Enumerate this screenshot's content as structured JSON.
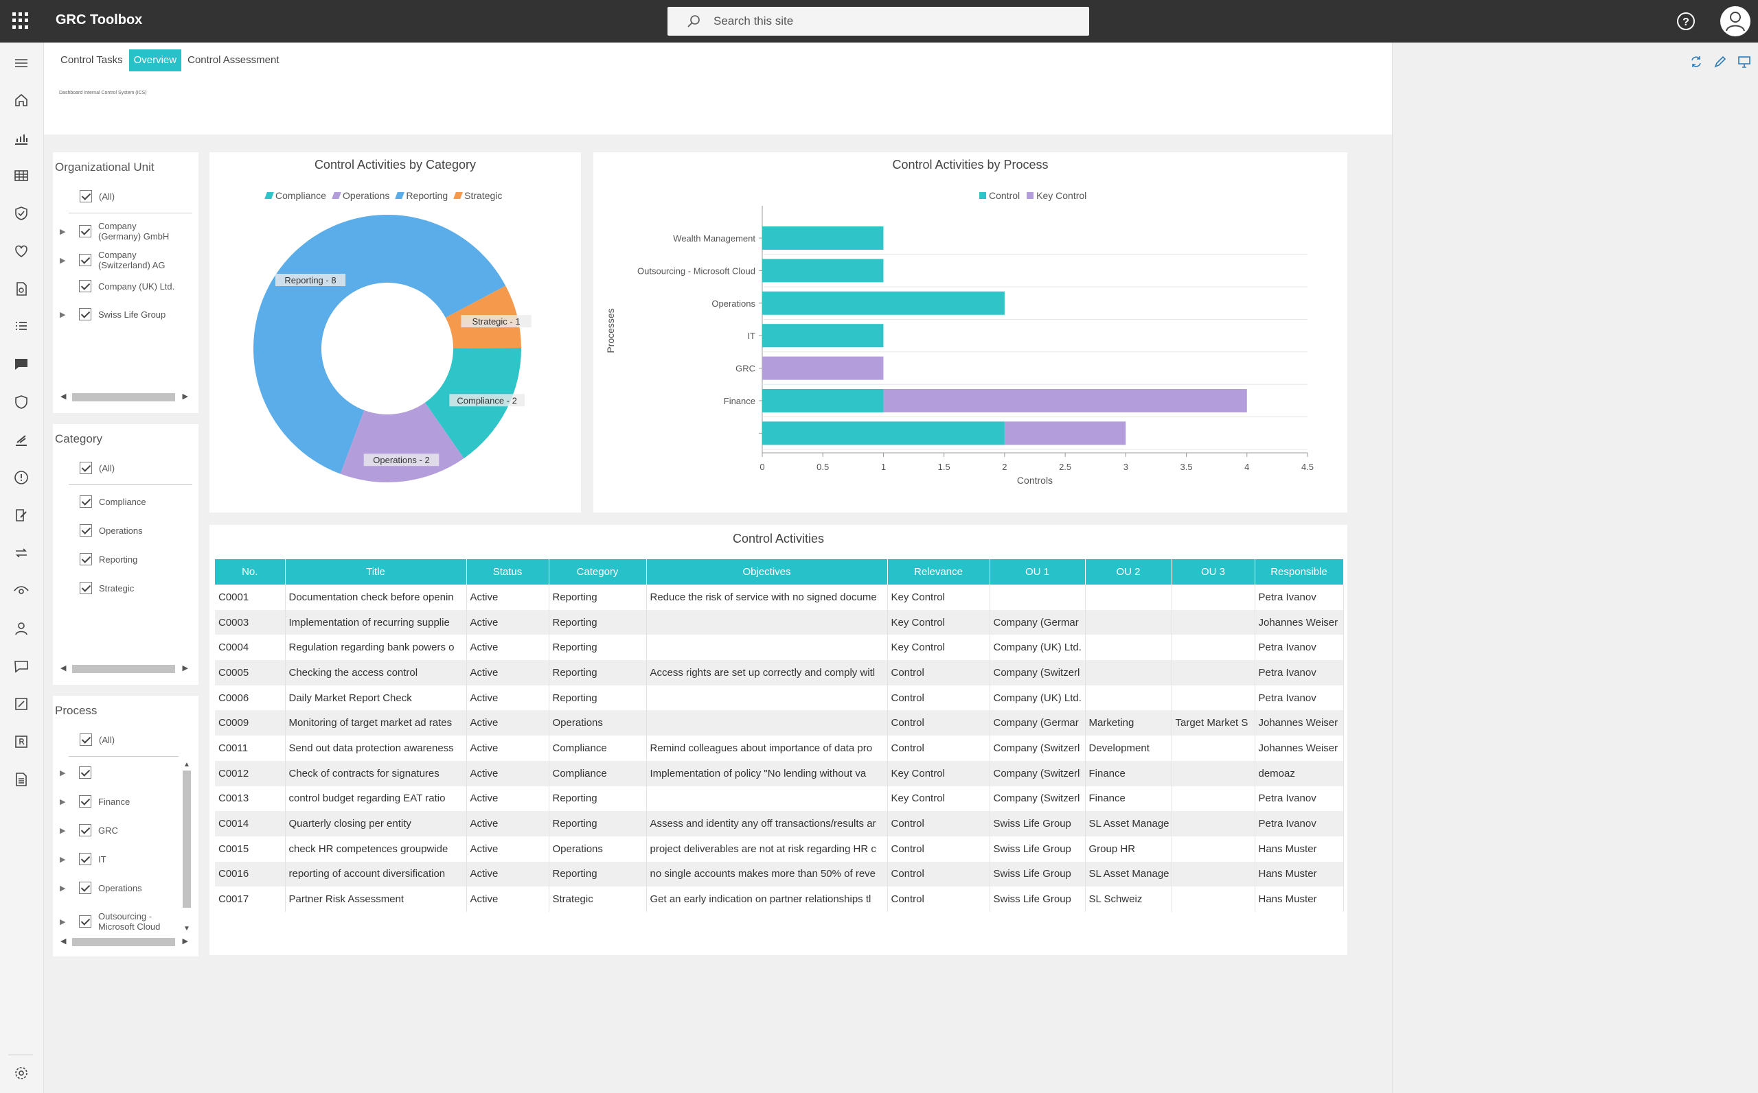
{
  "app": {
    "title": "GRC Toolbox",
    "search_placeholder": "Search this site"
  },
  "tabs": [
    {
      "label": "Control Tasks",
      "active": false
    },
    {
      "label": "Overview",
      "active": true
    },
    {
      "label": "Control Assessment",
      "active": false
    }
  ],
  "page_tiny_title": "Dashboard Internal Control System (ICS)",
  "filters": {
    "org_unit": {
      "title": "Organizational Unit",
      "all": "(All)",
      "items": [
        "Company (Germany) GmbH",
        "Company (Switzerland) AG",
        "Company (UK) Ltd.",
        "Swiss Life Group"
      ]
    },
    "category": {
      "title": "Category",
      "all": "(All)",
      "items": [
        "Compliance",
        "Operations",
        "Reporting",
        "Strategic"
      ]
    },
    "process": {
      "title": "Process",
      "all": "(All)",
      "items": [
        "",
        "Finance",
        "GRC",
        "IT",
        "Operations",
        "Outsourcing - Microsoft Cloud"
      ]
    }
  },
  "colors": {
    "accent": "#26c1c9",
    "compliance": "#2fc4c8",
    "operations": "#b39ddb",
    "reporting": "#5aade8",
    "strategic": "#f59a4c",
    "key_control": "#b39ddb",
    "control": "#2fc4c8"
  },
  "chart_data": [
    {
      "type": "pie",
      "title": "Control Activities by Category",
      "legend": [
        "Compliance",
        "Operations",
        "Reporting",
        "Strategic"
      ],
      "labels": [
        "Reporting",
        "Strategic",
        "Compliance",
        "Operations"
      ],
      "values": [
        8,
        1,
        2,
        2
      ],
      "data_labels": [
        "Reporting - 8",
        "Strategic - 1",
        "Compliance - 2",
        "Operations - 2"
      ]
    },
    {
      "type": "bar",
      "orientation": "horizontal",
      "stacked": true,
      "title": "Control Activities by Process",
      "categories": [
        "Wealth Management",
        "Outsourcing - Microsoft Cloud",
        "Operations",
        "IT",
        "GRC",
        "Finance",
        ""
      ],
      "series": [
        {
          "name": "Control",
          "values": [
            1,
            1,
            2,
            1,
            0,
            1,
            2
          ]
        },
        {
          "name": "Key Control",
          "values": [
            0,
            0,
            0,
            0,
            1,
            3,
            1
          ]
        }
      ],
      "xlabel": "Controls",
      "ylabel": "Processes",
      "xlim": [
        0,
        4.5
      ],
      "xticks": [
        "0",
        "0.5",
        "1",
        "1.5",
        "2",
        "2.5",
        "3",
        "3.5",
        "4",
        "4.5"
      ]
    }
  ],
  "table": {
    "title": "Control Activities",
    "columns": [
      "No.",
      "Title",
      "Status",
      "Category",
      "Objectives",
      "Relevance",
      "OU 1",
      "OU 2",
      "OU 3",
      "Responsible"
    ],
    "rows": [
      [
        "C0001",
        "Documentation check before openin",
        "Active",
        "Reporting",
        "Reduce the risk of service with no signed docume",
        "Key Control",
        "",
        "",
        "",
        "Petra Ivanov"
      ],
      [
        "C0003",
        "Implementation of recurring supplie",
        "Active",
        "Reporting",
        "",
        "Key Control",
        "Company (Germar",
        "",
        "",
        "Johannes Weiser"
      ],
      [
        "C0004",
        "Regulation regarding bank powers o",
        "Active",
        "Reporting",
        "",
        "Key Control",
        "Company (UK) Ltd.",
        "",
        "",
        "Petra Ivanov"
      ],
      [
        "C0005",
        "Checking the access control",
        "Active",
        "Reporting",
        "Access rights are set up correctly and comply witl",
        "Control",
        "Company (Switzerl",
        "",
        "",
        "Petra Ivanov"
      ],
      [
        "C0006",
        "Daily Market Report Check",
        "Active",
        "Reporting",
        "",
        "Control",
        "Company (UK) Ltd.",
        "",
        "",
        "Petra Ivanov"
      ],
      [
        "C0009",
        "Monitoring of target market ad rates",
        "Active",
        "Operations",
        "",
        "Control",
        "Company (Germar",
        "Marketing",
        "Target Market S",
        "Johannes Weiser"
      ],
      [
        "C0011",
        "Send out data protection awareness",
        "Active",
        "Compliance",
        "Remind colleagues about importance of data pro",
        "Control",
        "Company (Switzerl",
        "Development",
        "",
        "Johannes Weiser"
      ],
      [
        "C0012",
        "Check of contracts for signatures",
        "Active",
        "Compliance",
        "Implementation of policy \"No lending without va",
        "Key Control",
        "Company (Switzerl",
        "Finance",
        "",
        "demoaz"
      ],
      [
        "C0013",
        "control budget regarding EAT ratio",
        "Active",
        "Reporting",
        "",
        "Key Control",
        "Company (Switzerl",
        "Finance",
        "",
        "Petra Ivanov"
      ],
      [
        "C0014",
        "Quarterly closing per entity",
        "Active",
        "Reporting",
        "Assess and identity any off transactions/results ar",
        "Control",
        "Swiss Life Group",
        "SL Asset Manage",
        "",
        "Petra Ivanov"
      ],
      [
        "C0015",
        "check HR competences groupwide",
        "Active",
        "Operations",
        "project deliverables are not at risk regarding HR c",
        "Control",
        "Swiss Life Group",
        "Group HR",
        "",
        "Hans Muster"
      ],
      [
        "C0016",
        "reporting of account diversification",
        "Active",
        "Reporting",
        "no single accounts makes more than 50% of reve",
        "Control",
        "Swiss Life Group",
        "SL Asset Manage",
        "",
        "Hans Muster"
      ],
      [
        "C0017",
        "Partner Risk Assessment",
        "Active",
        "Strategic",
        "Get an early indication on partner relationships tl",
        "Control",
        "Swiss Life Group",
        "SL Schweiz",
        "",
        "Hans Muster"
      ]
    ]
  }
}
